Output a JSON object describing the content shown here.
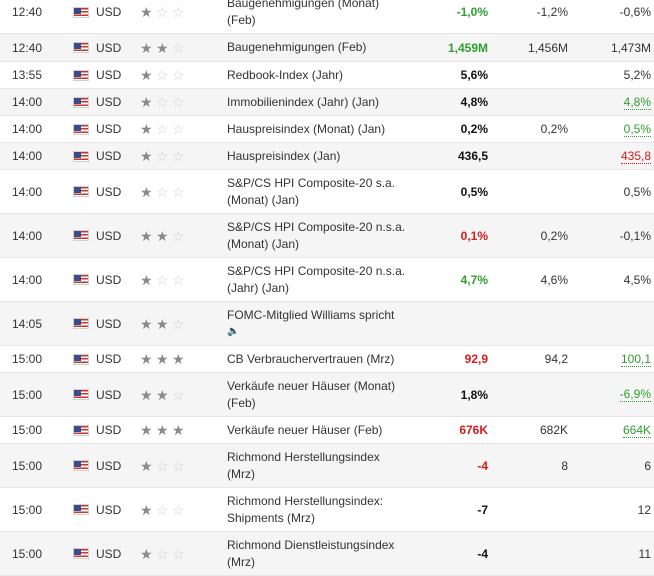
{
  "events": [
    {
      "time": "12:40",
      "currency": "USD",
      "importance": 1,
      "title": [
        "Baugenehmigungen (Monat)",
        "(Feb)"
      ],
      "actual": "-1,0%",
      "actual_color": "green",
      "forecast": "-1,2%",
      "previous": "-0,6%",
      "previous_style": "plain",
      "height": 42,
      "top_offset": -14
    },
    {
      "time": "12:40",
      "currency": "USD",
      "importance": 2,
      "title": [
        "Baugenehmigungen (Feb)"
      ],
      "actual": "1,459M",
      "actual_color": "green",
      "forecast": "1,456M",
      "previous": "1,473M",
      "previous_style": "plain",
      "height": 27
    },
    {
      "time": "13:55",
      "currency": "USD",
      "importance": 1,
      "title": [
        "Redbook-Index (Jahr)"
      ],
      "actual": "5,6%",
      "actual_color": "black",
      "forecast": "",
      "previous": "5,2%",
      "previous_style": "plain",
      "height": 26
    },
    {
      "time": "14:00",
      "currency": "USD",
      "importance": 1,
      "title": [
        "Immobilienindex (Jahr) (Jan)"
      ],
      "actual": "4,8%",
      "actual_color": "black",
      "forecast": "",
      "previous": "4,8%",
      "previous_style": "up",
      "height": 26
    },
    {
      "time": "14:00",
      "currency": "USD",
      "importance": 1,
      "title": [
        "Hauspreisindex (Monat) (Jan)"
      ],
      "actual": "0,2%",
      "actual_color": "black",
      "forecast": "0,2%",
      "previous": "0,5%",
      "previous_style": "up",
      "height": 26
    },
    {
      "time": "14:00",
      "currency": "USD",
      "importance": 1,
      "title": [
        "Hauspreisindex (Jan)"
      ],
      "actual": "436,5",
      "actual_color": "black",
      "forecast": "",
      "previous": "435,8",
      "previous_style": "down",
      "height": 26
    },
    {
      "time": "14:00",
      "currency": "USD",
      "importance": 1,
      "title": [
        "S&P/CS HPI Composite-20 s.a.",
        "(Monat) (Jan)"
      ],
      "actual": "0,5%",
      "actual_color": "black",
      "forecast": "",
      "previous": "0,5%",
      "previous_style": "plain",
      "height": 43
    },
    {
      "time": "14:00",
      "currency": "USD",
      "importance": 2,
      "title": [
        "S&P/CS HPI Composite-20 n.s.a.",
        "(Monat) (Jan)"
      ],
      "actual": "0,1%",
      "actual_color": "red",
      "forecast": "0,2%",
      "previous": "-0,1%",
      "previous_style": "plain",
      "height": 43
    },
    {
      "time": "14:00",
      "currency": "USD",
      "importance": 1,
      "title": [
        "S&P/CS HPI Composite-20 n.s.a.",
        "(Jahr) (Jan)"
      ],
      "actual": "4,7%",
      "actual_color": "green",
      "forecast": "4,6%",
      "previous": "4,5%",
      "previous_style": "plain",
      "height": 43
    },
    {
      "time": "14:05",
      "currency": "USD",
      "importance": 2,
      "title": [
        "FOMC-Mitglied Williams spricht"
      ],
      "sound": true,
      "actual": "",
      "actual_color": "black",
      "forecast": "",
      "previous": "",
      "previous_style": "plain",
      "height": 43
    },
    {
      "time": "15:00",
      "currency": "USD",
      "importance": 3,
      "title": [
        "CB Verbrauchervertrauen (Mrz)"
      ],
      "actual": "92,9",
      "actual_color": "red",
      "forecast": "94,2",
      "previous": "100,1",
      "previous_style": "up",
      "height": 26
    },
    {
      "time": "15:00",
      "currency": "USD",
      "importance": 2,
      "title": [
        "Verkäufe neuer Häuser (Monat)",
        "(Feb)"
      ],
      "actual": "1,8%",
      "actual_color": "black",
      "forecast": "",
      "previous": "-6,9%",
      "previous_style": "up",
      "height": 43
    },
    {
      "time": "15:00",
      "currency": "USD",
      "importance": 3,
      "title": [
        "Verkäufe neuer Häuser (Feb)"
      ],
      "actual": "676K",
      "actual_color": "red",
      "forecast": "682K",
      "previous": "664K",
      "previous_style": "up",
      "height": 26
    },
    {
      "time": "15:00",
      "currency": "USD",
      "importance": 1,
      "title": [
        "Richmond Herstellungsindex",
        "(Mrz)"
      ],
      "actual": "-4",
      "actual_color": "red",
      "forecast": "8",
      "previous": "6",
      "previous_style": "plain",
      "height": 43
    },
    {
      "time": "15:00",
      "currency": "USD",
      "importance": 1,
      "title": [
        "Richmond Herstellungsindex:",
        "Shipments (Mrz)"
      ],
      "actual": "-7",
      "actual_color": "black",
      "forecast": "",
      "previous": "12",
      "previous_style": "plain",
      "height": 43
    },
    {
      "time": "15:00",
      "currency": "USD",
      "importance": 1,
      "title": [
        "Richmond Dienstleistungsindex",
        "(Mrz)"
      ],
      "actual": "-4",
      "actual_color": "black",
      "forecast": "",
      "previous": "11",
      "previous_style": "plain",
      "height": 43
    }
  ],
  "icons": {
    "flag": "us-flag-icon",
    "star": "star-icon",
    "sound": "speaker-icon"
  }
}
